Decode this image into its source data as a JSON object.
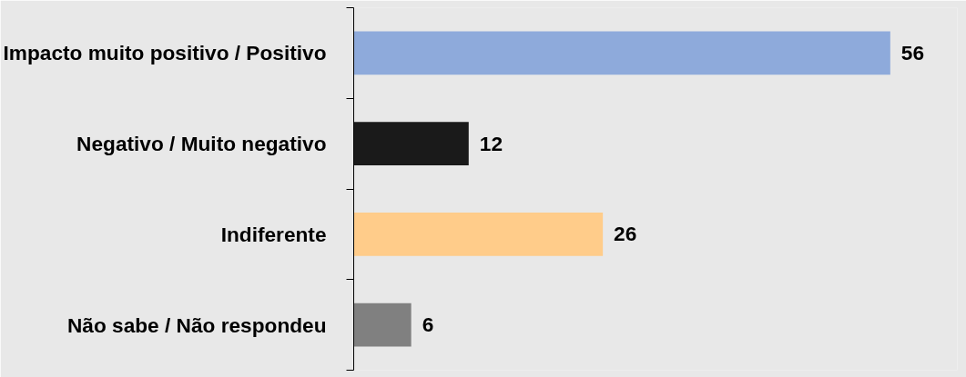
{
  "chart_data": {
    "type": "bar",
    "orientation": "horizontal",
    "categories": [
      "Impacto muito positivo / Positivo",
      "Negativo / Muito negativo",
      "Indiferente",
      "Não sabe / Não respondeu"
    ],
    "values": [
      56,
      12,
      26,
      6
    ],
    "colors": [
      "#8eaadb",
      "#1a1a1a",
      "#ffcc8a",
      "#808080"
    ],
    "data_labels": true
  }
}
